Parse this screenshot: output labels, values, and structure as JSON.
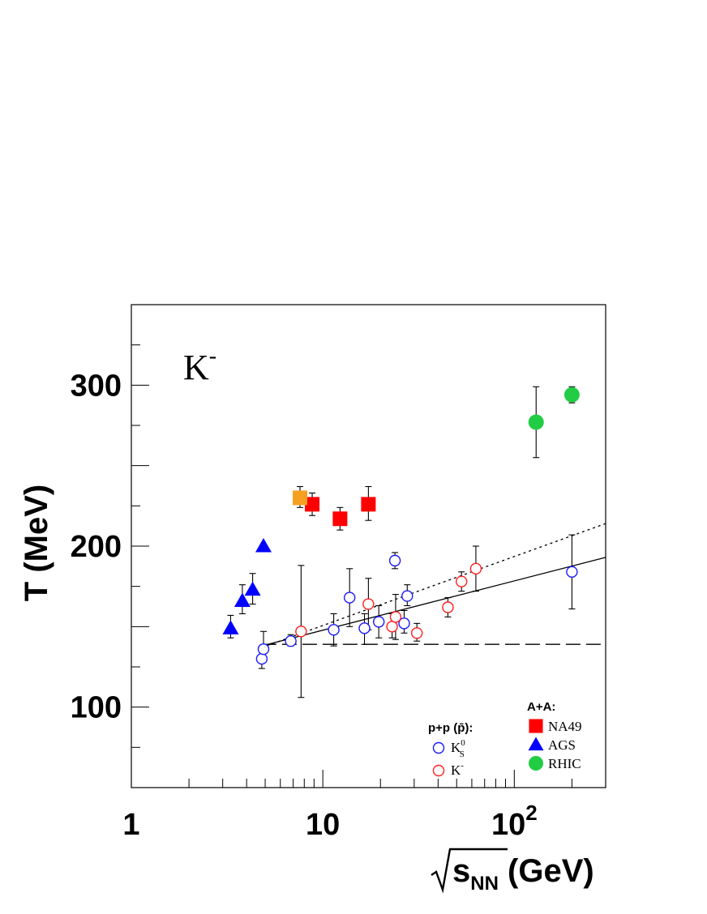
{
  "chart_data": {
    "type": "scatter",
    "particle_label": "K",
    "particle_charge": "-",
    "xlabel_prefix": "s",
    "xlabel_sub": "NN",
    "xlabel_suffix": " (GeV)",
    "ylabel": "T (MeV)",
    "x_scale": "log",
    "xlim": [
      1,
      300
    ],
    "ylim": [
      50,
      350
    ],
    "x_ticks": [
      {
        "value": 1,
        "label": "1"
      },
      {
        "value": 10,
        "label": "10"
      },
      {
        "value": 100,
        "label": "10",
        "sup": "2"
      }
    ],
    "y_ticks": [
      {
        "value": 100,
        "label": "100"
      },
      {
        "value": 200,
        "label": "200"
      },
      {
        "value": 300,
        "label": "300"
      }
    ],
    "grid": false,
    "legend_pp": {
      "title": "p+p (p̄):",
      "entries": [
        {
          "label": "K",
          "sup": "0",
          "sub": "S",
          "color": "#1a1aff",
          "marker": "open-circle"
        },
        {
          "label": "K",
          "sup": "-",
          "sub": "",
          "color": "#ff2020",
          "marker": "open-circle"
        }
      ]
    },
    "legend_aa": {
      "title": "A+A:",
      "entries": [
        {
          "label": "NA49",
          "color": "#ff0000",
          "marker": "square"
        },
        {
          "label": "AGS",
          "color": "#0000ff",
          "marker": "triangle"
        },
        {
          "label": "RHIC",
          "color": "#22cc44",
          "marker": "circle"
        }
      ]
    },
    "series": [
      {
        "name": "NA49",
        "marker": "square",
        "color": "#ff0000",
        "points": [
          {
            "x": 8.8,
            "y": 226,
            "elo": 219,
            "ehi": 233
          },
          {
            "x": 12.3,
            "y": 217,
            "elo": 210,
            "ehi": 224
          },
          {
            "x": 17.3,
            "y": 226,
            "elo": 216,
            "ehi": 237
          }
        ]
      },
      {
        "marker": "square",
        "color": "#f5a020",
        "points": [
          {
            "x": 7.6,
            "y": 230,
            "elo": 224,
            "ehi": 237
          }
        ]
      },
      {
        "name": "AGS",
        "marker": "triangle",
        "color": "#0000ff",
        "points": [
          {
            "x": 3.3,
            "y": 149,
            "elo": 143,
            "ehi": 157
          },
          {
            "x": 3.8,
            "y": 166,
            "elo": 158,
            "ehi": 176
          },
          {
            "x": 4.3,
            "y": 173,
            "elo": 164,
            "ehi": 183
          },
          {
            "x": 4.9,
            "y": 200,
            "elo": 200,
            "ehi": 200
          }
        ]
      },
      {
        "name": "RHIC",
        "marker": "circle",
        "color": "#22cc44",
        "points": [
          {
            "x": 130,
            "y": 277,
            "elo": 255,
            "ehi": 299
          },
          {
            "x": 200,
            "y": 294,
            "elo": 289,
            "ehi": 299
          }
        ]
      },
      {
        "name": "K0S",
        "marker": "open-circle",
        "color": "#1a1aff",
        "points": [
          {
            "x": 4.8,
            "y": 130,
            "elo": 124,
            "ehi": 137
          },
          {
            "x": 4.9,
            "y": 136,
            "elo": 130,
            "ehi": 147
          },
          {
            "x": 6.8,
            "y": 141,
            "elo": 138,
            "ehi": 145
          },
          {
            "x": 11.4,
            "y": 148,
            "elo": 138,
            "ehi": 158
          },
          {
            "x": 13.8,
            "y": 168,
            "elo": 150,
            "ehi": 186
          },
          {
            "x": 16.5,
            "y": 149,
            "elo": 139,
            "ehi": 158
          },
          {
            "x": 19.6,
            "y": 153,
            "elo": 143,
            "ehi": 163
          },
          {
            "x": 23.8,
            "y": 191,
            "elo": 186,
            "ehi": 196
          },
          {
            "x": 26.6,
            "y": 152,
            "elo": 146,
            "ehi": 160
          },
          {
            "x": 27.6,
            "y": 169,
            "elo": 163,
            "ehi": 176
          },
          {
            "x": 200,
            "y": 184,
            "elo": 161,
            "ehi": 207
          }
        ]
      },
      {
        "name": "K-",
        "marker": "open-circle",
        "color": "#ff2020",
        "points": [
          {
            "x": 7.7,
            "y": 147,
            "elo": 106,
            "ehi": 188
          },
          {
            "x": 17.3,
            "y": 164,
            "elo": 148,
            "ehi": 180
          },
          {
            "x": 23.0,
            "y": 150,
            "elo": 143,
            "ehi": 158
          },
          {
            "x": 24.0,
            "y": 156,
            "elo": 142,
            "ehi": 170
          },
          {
            "x": 31.0,
            "y": 146,
            "elo": 141,
            "ehi": 152
          },
          {
            "x": 45.0,
            "y": 162,
            "elo": 156,
            "ehi": 168
          },
          {
            "x": 53.0,
            "y": 178,
            "elo": 172,
            "ehi": 184
          },
          {
            "x": 63.0,
            "y": 186,
            "elo": 172,
            "ehi": 200
          }
        ]
      }
    ],
    "fit_lines": [
      {
        "style": "solid",
        "x": [
          4.8,
          300
        ],
        "y": [
          138,
          193
        ]
      },
      {
        "style": "dotted",
        "x": [
          4.8,
          300
        ],
        "y": [
          137,
          214
        ]
      },
      {
        "style": "dashed",
        "x": [
          4.8,
          300
        ],
        "y": [
          139,
          139
        ]
      }
    ]
  }
}
